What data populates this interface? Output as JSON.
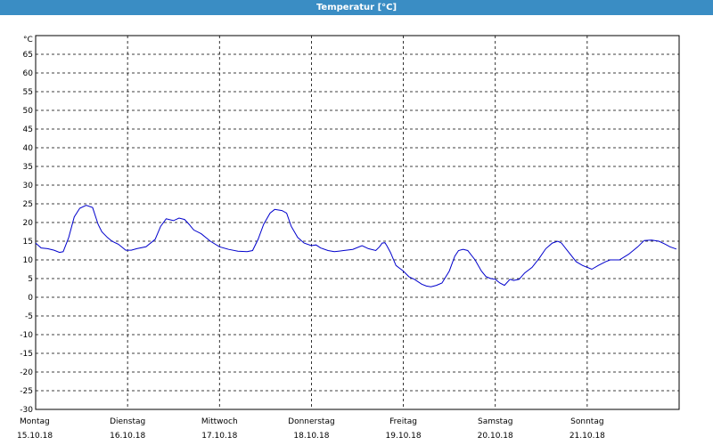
{
  "window": {
    "title": "Temperatur [°C]"
  },
  "chart_data": {
    "type": "line",
    "title": "Temperatur [°C]",
    "ylabel": "°C",
    "ylim": [
      -30,
      70
    ],
    "yticks": [
      65,
      60,
      55,
      50,
      45,
      40,
      35,
      30,
      25,
      20,
      15,
      10,
      5,
      0,
      -5,
      -10,
      -15,
      -20,
      -25,
      -30
    ],
    "xlim": [
      0,
      7
    ],
    "days": [
      {
        "weekday": "Montag",
        "date": "15.10.18"
      },
      {
        "weekday": "Dienstag",
        "date": "16.10.18"
      },
      {
        "weekday": "Mittwoch",
        "date": "17.10.18"
      },
      {
        "weekday": "Donnerstag",
        "date": "18.10.18"
      },
      {
        "weekday": "Freitag",
        "date": "19.10.18"
      },
      {
        "weekday": "Samstag",
        "date": "20.10.18"
      },
      {
        "weekday": "Sonntag",
        "date": "21.10.18"
      }
    ],
    "grid": true,
    "line_color": "#0000cc",
    "series": [
      {
        "x": [
          0.0,
          0.06,
          0.13,
          0.2,
          0.26,
          0.3,
          0.36,
          0.42,
          0.48,
          0.55,
          0.62,
          0.68,
          0.72,
          0.78,
          0.83,
          0.9,
          0.98,
          1.04,
          1.1,
          1.2,
          1.3,
          1.36,
          1.42,
          1.45,
          1.5,
          1.56,
          1.62,
          1.67,
          1.72,
          1.8,
          1.9,
          2.0,
          2.1,
          2.2,
          2.3,
          2.36,
          2.42,
          2.48,
          2.55,
          2.6,
          2.68,
          2.73,
          2.78,
          2.85,
          2.92,
          3.0,
          3.05,
          3.1,
          3.18,
          3.25,
          3.35,
          3.45,
          3.55,
          3.62,
          3.7,
          3.74,
          3.77,
          3.8,
          3.82,
          3.86,
          3.92,
          4.0,
          4.06,
          4.12,
          4.2,
          4.25,
          4.3,
          4.36,
          4.42,
          4.5,
          4.56,
          4.6,
          4.65,
          4.7,
          4.78,
          4.85,
          4.9,
          4.95,
          5.0,
          5.05,
          5.1,
          5.16,
          5.2,
          5.26,
          5.32,
          5.4,
          5.48,
          5.55,
          5.62,
          5.68,
          5.72,
          5.8,
          5.88,
          5.95,
          6.0,
          6.05,
          6.12,
          6.2,
          6.25,
          6.35,
          6.45,
          6.55,
          6.62,
          6.7,
          6.78,
          6.85,
          6.9,
          6.97
        ],
        "y": [
          14.5,
          13.2,
          13.0,
          12.6,
          12.0,
          12.2,
          16.0,
          21.5,
          23.8,
          24.6,
          24.0,
          19.5,
          17.5,
          16.0,
          15.0,
          14.2,
          12.6,
          12.6,
          13.0,
          13.5,
          15.5,
          19.0,
          21.0,
          20.8,
          20.5,
          21.2,
          20.8,
          19.5,
          18.0,
          17.0,
          15.0,
          13.5,
          12.8,
          12.3,
          12.2,
          12.5,
          15.5,
          19.5,
          22.5,
          23.5,
          23.2,
          22.5,
          19.0,
          16.0,
          14.5,
          13.8,
          14.0,
          13.2,
          12.5,
          12.2,
          12.5,
          12.8,
          13.8,
          13.0,
          12.5,
          13.5,
          14.5,
          14.6,
          13.8,
          12.0,
          8.5,
          7.0,
          5.5,
          4.8,
          3.5,
          3.0,
          2.8,
          3.2,
          3.8,
          7.0,
          11.0,
          12.5,
          12.8,
          12.5,
          10.0,
          7.0,
          5.5,
          5.0,
          4.8,
          3.8,
          3.2,
          4.8,
          4.5,
          4.8,
          6.5,
          8.0,
          10.5,
          13.0,
          14.5,
          15.0,
          14.5,
          12.0,
          9.5,
          8.5,
          8.0,
          7.5,
          8.5,
          9.5,
          10.0,
          10.0,
          11.5,
          13.5,
          15.2,
          15.3,
          15.0,
          14.2,
          13.5,
          12.9
        ]
      }
    ]
  }
}
